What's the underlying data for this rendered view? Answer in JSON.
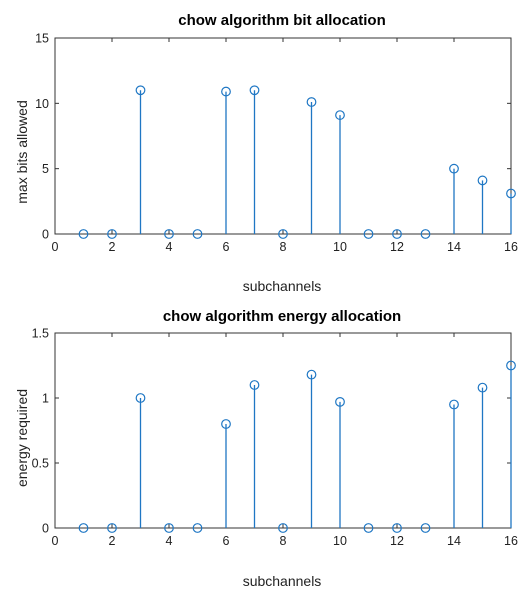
{
  "chart_data": [
    {
      "type": "stem",
      "title": "chow algorithm bit allocation",
      "xlabel": "subchannels",
      "ylabel": "max bits allowed",
      "xlim": [
        0,
        16
      ],
      "ylim": [
        0,
        15
      ],
      "xticks": [
        0,
        2,
        4,
        6,
        8,
        10,
        12,
        14,
        16
      ],
      "yticks": [
        0,
        5,
        10,
        15
      ],
      "color": "#1f77c4",
      "x": [
        1,
        2,
        3,
        4,
        5,
        6,
        7,
        8,
        9,
        10,
        11,
        12,
        13,
        14,
        15,
        16
      ],
      "values": [
        0,
        0,
        11,
        0,
        0,
        10.9,
        11,
        0,
        10.1,
        9.1,
        0,
        0,
        0,
        5,
        4.1,
        3.1
      ]
    },
    {
      "type": "stem",
      "title": "chow algorithm energy allocation",
      "xlabel": "subchannels",
      "ylabel": "energy required",
      "xlim": [
        0,
        16
      ],
      "ylim": [
        0,
        1.5
      ],
      "xticks": [
        0,
        2,
        4,
        6,
        8,
        10,
        12,
        14,
        16
      ],
      "yticks": [
        0,
        0.5,
        1,
        1.5
      ],
      "color": "#1f77c4",
      "x": [
        1,
        2,
        3,
        4,
        5,
        6,
        7,
        8,
        9,
        10,
        11,
        12,
        13,
        14,
        15,
        16
      ],
      "values": [
        0,
        0,
        1.0,
        0,
        0,
        0.8,
        1.1,
        0,
        1.18,
        0.97,
        0,
        0,
        0,
        0.95,
        1.08,
        1.25
      ]
    }
  ]
}
